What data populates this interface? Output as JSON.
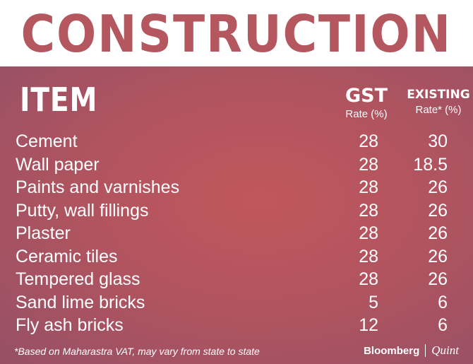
{
  "title": "CONSTRUCTION",
  "header": {
    "item": "ITEM",
    "gst_main": "GST",
    "gst_sub": "Rate (%)",
    "existing_main": "EXISTING",
    "existing_sub": "Rate* (%)"
  },
  "rows": [
    {
      "item": "Cement",
      "gst": "28",
      "existing": "30"
    },
    {
      "item": "Wall paper",
      "gst": "28",
      "existing": "18.5"
    },
    {
      "item": "Paints and varnishes",
      "gst": "28",
      "existing": "26"
    },
    {
      "item": "Putty, wall fillings",
      "gst": "28",
      "existing": "26"
    },
    {
      "item": "Plaster",
      "gst": "28",
      "existing": "26"
    },
    {
      "item": "Ceramic tiles",
      "gst": "28",
      "existing": "26"
    },
    {
      "item": "Tempered glass",
      "gst": "28",
      "existing": "26"
    },
    {
      "item": "Sand lime bricks",
      "gst": "5",
      "existing": "6"
    },
    {
      "item": "Fly ash bricks",
      "gst": "12",
      "existing": "6"
    }
  ],
  "footnote": "*Based on Maharastra VAT, may vary from state to state",
  "brand": {
    "primary": "Bloomberg",
    "secondary": "Quint"
  },
  "colors": {
    "accent": "#b4575e",
    "panel": "#b2545f"
  }
}
